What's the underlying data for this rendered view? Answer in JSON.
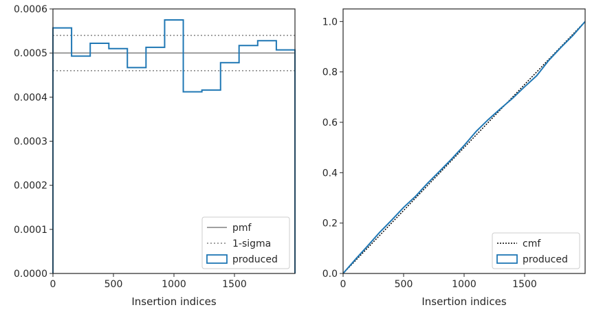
{
  "chart_data": [
    {
      "type": "step",
      "xlabel": "Insertion indices",
      "ylabel": "",
      "xlim": [
        0,
        2000
      ],
      "ylim": [
        0,
        0.0006
      ],
      "x_ticks": [
        0,
        500,
        1000,
        1500
      ],
      "x_tick_labels": [
        "0",
        "500",
        "1000",
        "1500"
      ],
      "y_ticks": [
        0,
        0.0001,
        0.0002,
        0.0003,
        0.0004,
        0.0005,
        0.0006
      ],
      "y_tick_labels": [
        "0.0000",
        "0.0001",
        "0.0002",
        "0.0003",
        "0.0004",
        "0.0005",
        "0.0006"
      ],
      "lines": [
        {
          "name": "pmf",
          "y": 0.0005,
          "style": "solid",
          "color": "#808080"
        },
        {
          "name": "1-sigma",
          "y": [
            0.00046,
            0.00054
          ],
          "style": "dotted",
          "color": "#808080"
        }
      ],
      "series": [
        {
          "name": "produced",
          "color": "#1f77b4",
          "bin_edges": [
            0,
            154,
            308,
            462,
            615,
            769,
            923,
            1077,
            1231,
            1385,
            1538,
            1692,
            1846,
            2000
          ],
          "values": [
            0.000557,
            0.000493,
            0.000522,
            0.00051,
            0.000467,
            0.000513,
            0.000575,
            0.000412,
            0.000416,
            0.000478,
            0.000517,
            0.000528,
            0.000507
          ]
        }
      ],
      "legend": {
        "position": "lower right",
        "entries": [
          "pmf",
          "1-sigma",
          "produced"
        ]
      }
    },
    {
      "type": "line",
      "xlabel": "Insertion indices",
      "ylabel": "",
      "xlim": [
        0,
        2000
      ],
      "ylim": [
        0,
        1.05
      ],
      "x_ticks": [
        0,
        500,
        1000,
        1500
      ],
      "x_tick_labels": [
        "0",
        "500",
        "1000",
        "1500"
      ],
      "y_ticks": [
        0,
        0.2,
        0.4,
        0.6,
        0.8,
        1.0
      ],
      "y_tick_labels": [
        "0.0",
        "0.2",
        "0.4",
        "0.6",
        "0.8",
        "1.0"
      ],
      "series": [
        {
          "name": "cmf",
          "style": "dotted",
          "color": "#000000",
          "x": [
            0,
            2000
          ],
          "y": [
            0,
            1
          ]
        },
        {
          "name": "produced",
          "style": "solid",
          "color": "#1f77b4",
          "x": [
            0,
            100,
            200,
            300,
            400,
            500,
            600,
            700,
            800,
            900,
            1000,
            1100,
            1200,
            1300,
            1400,
            1500,
            1600,
            1700,
            1800,
            1900,
            2000
          ],
          "y": [
            0,
            0.055,
            0.108,
            0.162,
            0.211,
            0.262,
            0.307,
            0.359,
            0.407,
            0.456,
            0.508,
            0.564,
            0.611,
            0.654,
            0.695,
            0.741,
            0.785,
            0.846,
            0.897,
            0.945,
            1.0
          ]
        }
      ],
      "legend": {
        "position": "lower right",
        "entries": [
          "cmf",
          "produced"
        ]
      }
    }
  ]
}
